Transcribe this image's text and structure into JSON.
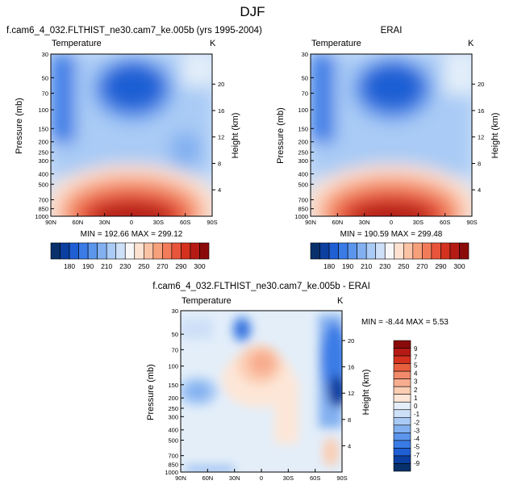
{
  "page_title": "DJF",
  "colors": {
    "cbar_abs": [
      "#08306b",
      "#0b3fa0",
      "#1f5fd4",
      "#3a7be6",
      "#5b95ec",
      "#82b0f0",
      "#a9cbf5",
      "#cde0f8",
      "#f7f7f7",
      "#fde2d2",
      "#fbc3a5",
      "#f7a07c",
      "#f27c5a",
      "#e8553b",
      "#d4321f",
      "#b51b14",
      "#8b0b0b"
    ],
    "cbar_diff": [
      "#08306b",
      "#0b3fa0",
      "#1f5fd4",
      "#3a7be6",
      "#5b95ec",
      "#82b0f0",
      "#a9cbf5",
      "#cde0f8",
      "#e3eef9",
      "#fde6d7",
      "#fbcdb3",
      "#f8ad8f",
      "#f28a6b",
      "#e8603f",
      "#d4321f",
      "#b51b14",
      "#8b0b0b"
    ]
  },
  "chart_data": [
    {
      "type": "heatmap",
      "title": "f.cam6_4_032.FLTHIST_ne30.cam7_ke.005b (yrs 1995-2004)",
      "variable": "Temperature",
      "units": "K",
      "ylabel": "Pressure (mb)",
      "ylabel_right": "Height (km)",
      "x_ticks": [
        "90N",
        "60N",
        "30N",
        "0",
        "30S",
        "60S",
        "90S"
      ],
      "y_ticks": [
        "30",
        "50",
        "70",
        "100",
        "150",
        "200",
        "250",
        "300",
        "400",
        "500",
        "700",
        "850",
        "1000"
      ],
      "right_ticks": [
        "20",
        "16",
        "12",
        "8",
        "4"
      ],
      "stats": "MIN = 192.66  MAX = 299.12",
      "min": 192.66,
      "max": 299.12
    },
    {
      "type": "heatmap",
      "title": "ERAI",
      "variable": "Temperature",
      "units": "K",
      "ylabel": "Pressure (mb)",
      "ylabel_right": "Height (km)",
      "x_ticks": [
        "90N",
        "60N",
        "30N",
        "0",
        "30S",
        "60S",
        "90S"
      ],
      "y_ticks": [
        "30",
        "50",
        "70",
        "100",
        "150",
        "200",
        "250",
        "300",
        "400",
        "500",
        "700",
        "850",
        "1000"
      ],
      "right_ticks": [
        "20",
        "16",
        "12",
        "8",
        "4"
      ],
      "stats": "MIN = 190.59  MAX = 299.48",
      "min": 190.59,
      "max": 299.48
    },
    {
      "type": "heatmap",
      "title": "f.cam6_4_032.FLTHIST_ne30.cam7_ke.005b - ERAI",
      "variable": "Temperature",
      "units": "K",
      "ylabel": "Pressure (mb)",
      "ylabel_right": "Height (km)",
      "x_ticks": [
        "90N",
        "60N",
        "30N",
        "0",
        "30S",
        "60S",
        "90S"
      ],
      "y_ticks": [
        "30",
        "50",
        "70",
        "100",
        "150",
        "200",
        "250",
        "300",
        "400",
        "500",
        "700",
        "850",
        "1000"
      ],
      "right_ticks": [
        "20",
        "16",
        "12",
        "8",
        "4"
      ],
      "stats": "MIN =  -8.44  MAX =   5.53",
      "min": -8.44,
      "max": 5.53
    }
  ],
  "colorbars": {
    "abs_labels": [
      "180",
      "190",
      "210",
      "230",
      "250",
      "270",
      "290",
      "300"
    ],
    "diff_labels": [
      "9",
      "7",
      "5",
      "4",
      "3",
      "2",
      "1",
      "0",
      "-1",
      "-2",
      "-3",
      "-4",
      "-5",
      "-7",
      "-9"
    ]
  }
}
